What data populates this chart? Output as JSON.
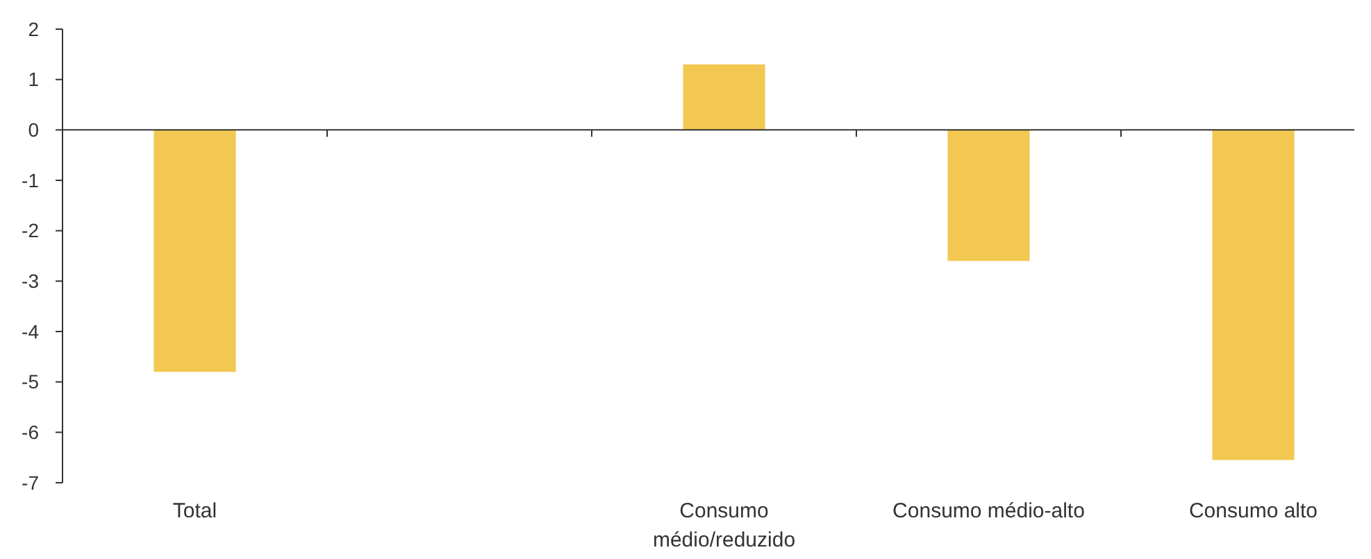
{
  "chart_data": {
    "type": "bar",
    "categories": [
      "Total",
      null,
      "Consumo médio/reduzido",
      "Consumo médio-alto",
      "Consumo alto"
    ],
    "values": [
      -4.8,
      null,
      1.3,
      -2.6,
      -6.55
    ],
    "color": "#f2c852",
    "ylim": [
      -7,
      2
    ],
    "yticks": [
      -7,
      -6,
      -5,
      -4,
      -3,
      -2,
      -1,
      0,
      1,
      2
    ]
  }
}
